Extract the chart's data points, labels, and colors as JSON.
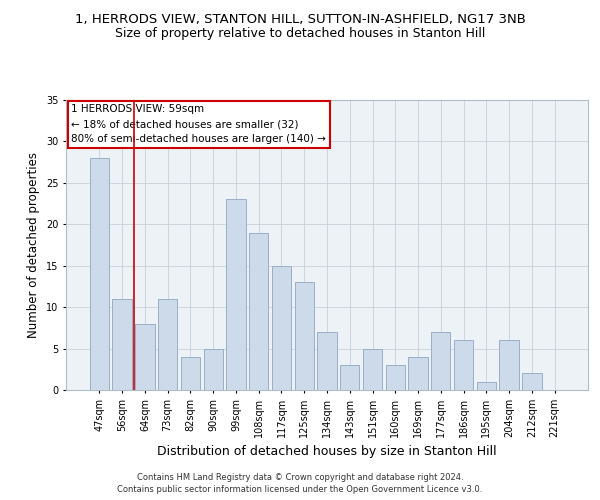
{
  "title": "1, HERRODS VIEW, STANTON HILL, SUTTON-IN-ASHFIELD, NG17 3NB",
  "subtitle": "Size of property relative to detached houses in Stanton Hill",
  "xlabel": "Distribution of detached houses by size in Stanton Hill",
  "ylabel": "Number of detached properties",
  "categories": [
    "47sqm",
    "56sqm",
    "64sqm",
    "73sqm",
    "82sqm",
    "90sqm",
    "99sqm",
    "108sqm",
    "117sqm",
    "125sqm",
    "134sqm",
    "143sqm",
    "151sqm",
    "160sqm",
    "169sqm",
    "177sqm",
    "186sqm",
    "195sqm",
    "204sqm",
    "212sqm",
    "221sqm"
  ],
  "values": [
    28,
    11,
    8,
    11,
    4,
    5,
    23,
    19,
    15,
    13,
    7,
    3,
    5,
    3,
    4,
    7,
    6,
    1,
    6,
    2,
    0
  ],
  "bar_color": "#cddaea",
  "bar_edge_color": "#99aec8",
  "red_line_bar_index": 1,
  "annotation_text": "1 HERRODS VIEW: 59sqm\n← 18% of detached houses are smaller (32)\n80% of semi-detached houses are larger (140) →",
  "annotation_box_color": "#ffffff",
  "annotation_box_edge": "#cc0000",
  "ylim": [
    0,
    35
  ],
  "yticks": [
    0,
    5,
    10,
    15,
    20,
    25,
    30,
    35
  ],
  "bg_color": "#edf2f7",
  "footer1": "Contains HM Land Registry data © Crown copyright and database right 2024.",
  "footer2": "Contains public sector information licensed under the Open Government Licence v3.0.",
  "title_fontsize": 9.5,
  "subtitle_fontsize": 9,
  "tick_fontsize": 7,
  "ylabel_fontsize": 8.5,
  "xlabel_fontsize": 9,
  "annotation_fontsize": 7.5,
  "footer_fontsize": 6
}
